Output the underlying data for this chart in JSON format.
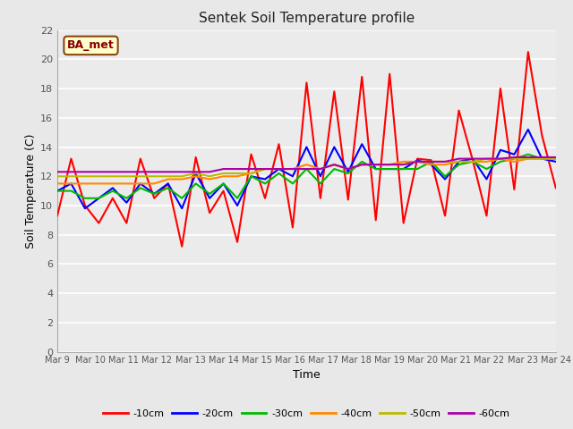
{
  "title": "Sentek Soil Temperature profile",
  "xlabel": "Time",
  "ylabel": "Soil Temperature (C)",
  "ylim": [
    0,
    22
  ],
  "yticks": [
    0,
    2,
    4,
    6,
    8,
    10,
    12,
    14,
    16,
    18,
    20,
    22
  ],
  "annotation": "BA_met",
  "fig_bg": "#e8e8e8",
  "plot_bg": "#ebebeb",
  "legend_entries": [
    "-10cm",
    "-20cm",
    "-30cm",
    "-40cm",
    "-50cm",
    "-60cm"
  ],
  "legend_colors": [
    "#ff0000",
    "#0000ff",
    "#00bb00",
    "#ff8800",
    "#bbbb00",
    "#aa00aa"
  ],
  "x_labels": [
    "Mar 9",
    "Mar 10",
    "Mar 11",
    "Mar 12",
    "Mar 13",
    "Mar 14",
    "Mar 15",
    "Mar 16",
    "Mar 17",
    "Mar 18",
    "Mar 19",
    "Mar 20",
    "Mar 21",
    "Mar 22",
    "Mar 23",
    "Mar 24"
  ],
  "data_10cm": [
    9.3,
    13.2,
    10.0,
    8.8,
    10.5,
    8.8,
    13.2,
    10.5,
    11.5,
    7.2,
    13.3,
    9.5,
    11.0,
    7.5,
    13.5,
    10.5,
    14.2,
    8.5,
    18.4,
    10.5,
    17.8,
    10.4,
    18.8,
    9.0,
    19.0,
    8.8,
    13.2,
    13.1,
    9.3,
    16.5,
    13.1,
    9.3,
    18.0,
    11.1,
    20.5,
    14.8,
    11.2
  ],
  "data_20cm": [
    11.0,
    11.5,
    9.8,
    10.5,
    11.2,
    10.2,
    11.5,
    10.8,
    11.5,
    9.8,
    12.2,
    10.5,
    11.5,
    10.0,
    12.0,
    11.8,
    12.5,
    12.0,
    14.0,
    12.0,
    14.0,
    12.3,
    14.2,
    12.5,
    12.5,
    12.5,
    13.1,
    12.8,
    11.8,
    13.0,
    13.2,
    11.8,
    13.8,
    13.5,
    15.2,
    13.2,
    13.0
  ],
  "data_30cm": [
    11.0,
    11.0,
    10.5,
    10.5,
    11.0,
    10.5,
    11.2,
    10.8,
    11.2,
    10.5,
    11.5,
    10.8,
    11.5,
    10.5,
    12.0,
    11.5,
    12.2,
    11.5,
    12.5,
    11.5,
    12.5,
    12.2,
    13.0,
    12.5,
    12.5,
    12.5,
    12.5,
    13.0,
    12.0,
    12.8,
    13.0,
    12.5,
    13.0,
    13.2,
    13.5,
    13.2,
    13.2
  ],
  "data_40cm": [
    11.5,
    11.5,
    11.5,
    11.5,
    11.5,
    11.5,
    11.5,
    11.5,
    11.8,
    11.8,
    12.0,
    11.8,
    12.0,
    12.0,
    12.2,
    12.5,
    12.5,
    12.5,
    12.8,
    12.5,
    12.8,
    12.5,
    12.8,
    12.8,
    12.8,
    13.0,
    13.0,
    12.8,
    12.8,
    13.0,
    13.0,
    13.0,
    13.2,
    13.0,
    13.2,
    13.2,
    13.3
  ],
  "data_50cm": [
    12.0,
    12.0,
    12.0,
    12.0,
    12.0,
    12.0,
    12.0,
    12.0,
    12.0,
    12.0,
    12.2,
    12.0,
    12.2,
    12.2,
    12.2,
    12.5,
    12.5,
    12.5,
    12.5,
    12.5,
    12.8,
    12.5,
    12.8,
    12.8,
    12.8,
    12.8,
    13.0,
    13.0,
    13.0,
    13.0,
    13.0,
    13.2,
    13.2,
    13.2,
    13.2,
    13.2,
    13.2
  ],
  "data_60cm": [
    12.3,
    12.3,
    12.3,
    12.3,
    12.3,
    12.3,
    12.3,
    12.3,
    12.3,
    12.3,
    12.3,
    12.3,
    12.5,
    12.5,
    12.5,
    12.5,
    12.5,
    12.5,
    12.5,
    12.5,
    12.8,
    12.5,
    12.8,
    12.8,
    12.8,
    12.8,
    13.0,
    13.0,
    13.0,
    13.2,
    13.2,
    13.2,
    13.2,
    13.3,
    13.3,
    13.3,
    13.3
  ]
}
